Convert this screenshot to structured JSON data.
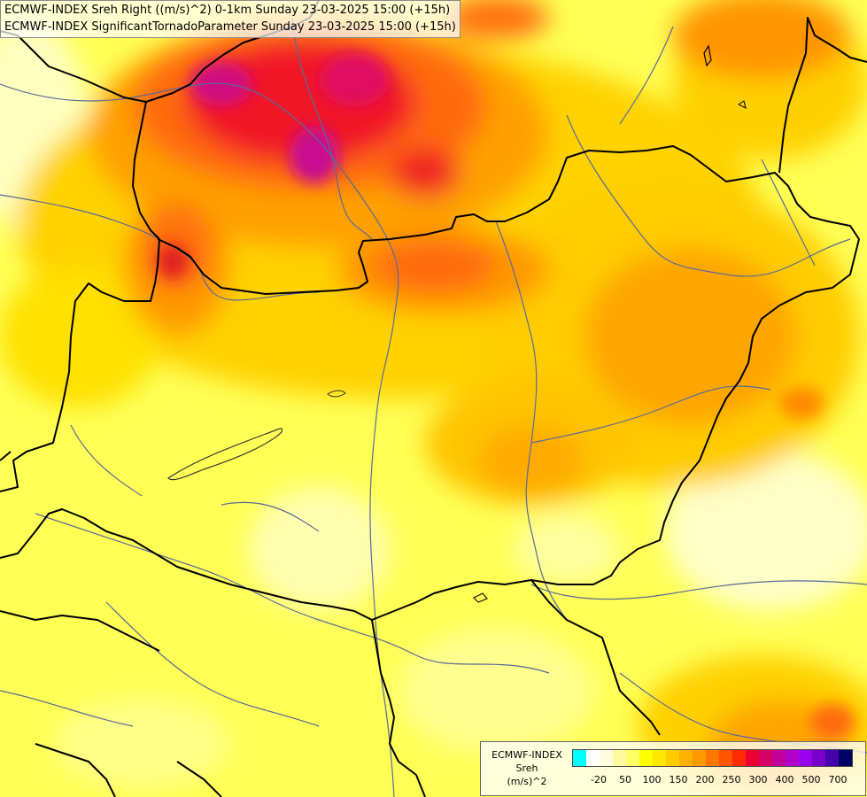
{
  "title": {
    "line1": "ECMWF-INDEX Sreh Right ((m/s)^2) 0-1km Sunday 23-03-2025 15:00 (+15h)",
    "line2": "ECMWF-INDEX SignificantTornadoParameter Sunday 23-03-2025 15:00 (+15h)"
  },
  "legend": {
    "line1": "ECMWF-INDEX",
    "line2": "Sreh",
    "line3": "(m/s)^2",
    "colors": [
      "#00ffff",
      "#ffffff",
      "#fffde0",
      "#fffaa0",
      "#ffff66",
      "#ffff00",
      "#ffe800",
      "#ffcc00",
      "#ffb000",
      "#ff9900",
      "#ff7700",
      "#ff5500",
      "#ff2a00",
      "#ee0033",
      "#d40066",
      "#c00099",
      "#b000cc",
      "#9900ee",
      "#7700cc",
      "#4400aa",
      "#000066"
    ],
    "ticks": [
      {
        "label": "-20",
        "index": 1
      },
      {
        "label": "50",
        "index": 3
      },
      {
        "label": "100",
        "index": 5
      },
      {
        "label": "150",
        "index": 7
      },
      {
        "label": "200",
        "index": 9
      },
      {
        "label": "250",
        "index": 11
      },
      {
        "label": "300",
        "index": 13
      },
      {
        "label": "400",
        "index": 15
      },
      {
        "label": "500",
        "index": 17
      },
      {
        "label": "700",
        "index": 19
      }
    ]
  },
  "palette": {
    "lightest": "#ffffc8",
    "light_yellow": "#ffff80",
    "yellow": "#ffff00",
    "gold": "#ffd700",
    "light_orange": "#ffb000",
    "orange": "#ff8c00",
    "dark_orange": "#ff6020",
    "red": "#ee1030",
    "magenta": "#d0108a",
    "borders": "#000000",
    "rivers": "#5a6a9a"
  }
}
